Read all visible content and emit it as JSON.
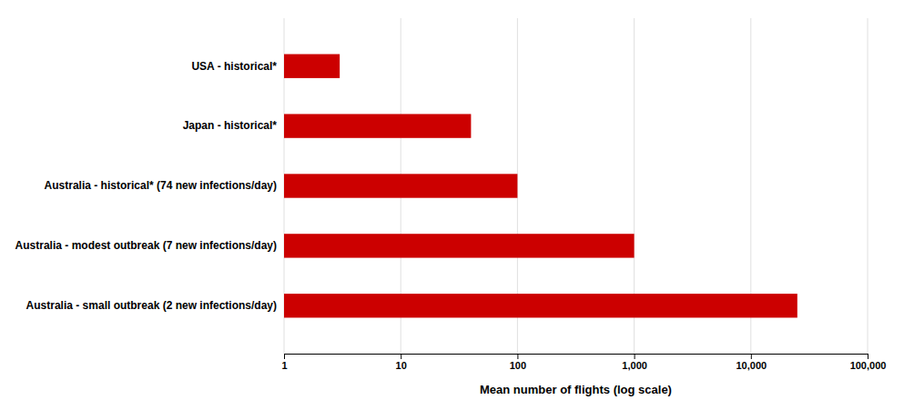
{
  "chart_data": {
    "type": "bar",
    "orientation": "horizontal",
    "categories": [
      "Australia - small outbreak (2 new infections/day)",
      "Australia - modest outbreak (7 new infections/day)",
      "Australia - historical* (74 new infections/day)",
      "Japan - historical*",
      "USA - historical*"
    ],
    "values": [
      25000,
      1000,
      100,
      40,
      3
    ],
    "color": "#cc0000",
    "xlabel": "Mean number of flights (log scale)",
    "log": "x",
    "xlim": [
      1,
      100000
    ],
    "xticks": [
      1,
      10,
      100,
      {
        "value": 1000,
        "label": "1,000"
      },
      {
        "value": 10000,
        "label": "10,000"
      },
      {
        "value": 100000,
        "label": "100,000"
      }
    ],
    "grid": true
  }
}
